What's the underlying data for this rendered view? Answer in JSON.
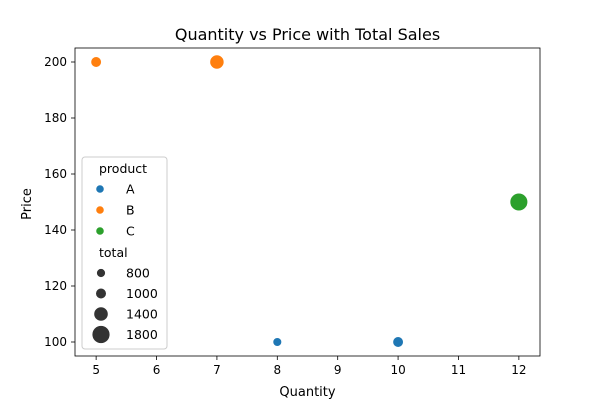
{
  "chart_data": {
    "type": "scatter",
    "title": "Quantity vs Price with Total Sales",
    "xlabel": "Quantity",
    "ylabel": "Price",
    "xlim": [
      4.65,
      12.35
    ],
    "ylim": [
      95,
      205
    ],
    "xticks": [
      5,
      6,
      7,
      8,
      9,
      10,
      11,
      12
    ],
    "yticks": [
      100,
      120,
      140,
      160,
      180,
      200
    ],
    "grid": false,
    "hue_title": "product",
    "size_title": "total",
    "legend_position": "center-left",
    "series": [
      {
        "name": "A",
        "color": "#1f77b4",
        "points": [
          {
            "x": 8,
            "y": 100,
            "total": 800
          },
          {
            "x": 10,
            "y": 100,
            "total": 1000
          }
        ]
      },
      {
        "name": "B",
        "color": "#ff7f0e",
        "points": [
          {
            "x": 5,
            "y": 200,
            "total": 1000
          },
          {
            "x": 7,
            "y": 200,
            "total": 1400
          }
        ]
      },
      {
        "name": "C",
        "color": "#2ca02c",
        "points": [
          {
            "x": 12,
            "y": 150,
            "total": 1800
          }
        ]
      }
    ],
    "size_legend": [
      800,
      1000,
      1400,
      1800
    ]
  }
}
